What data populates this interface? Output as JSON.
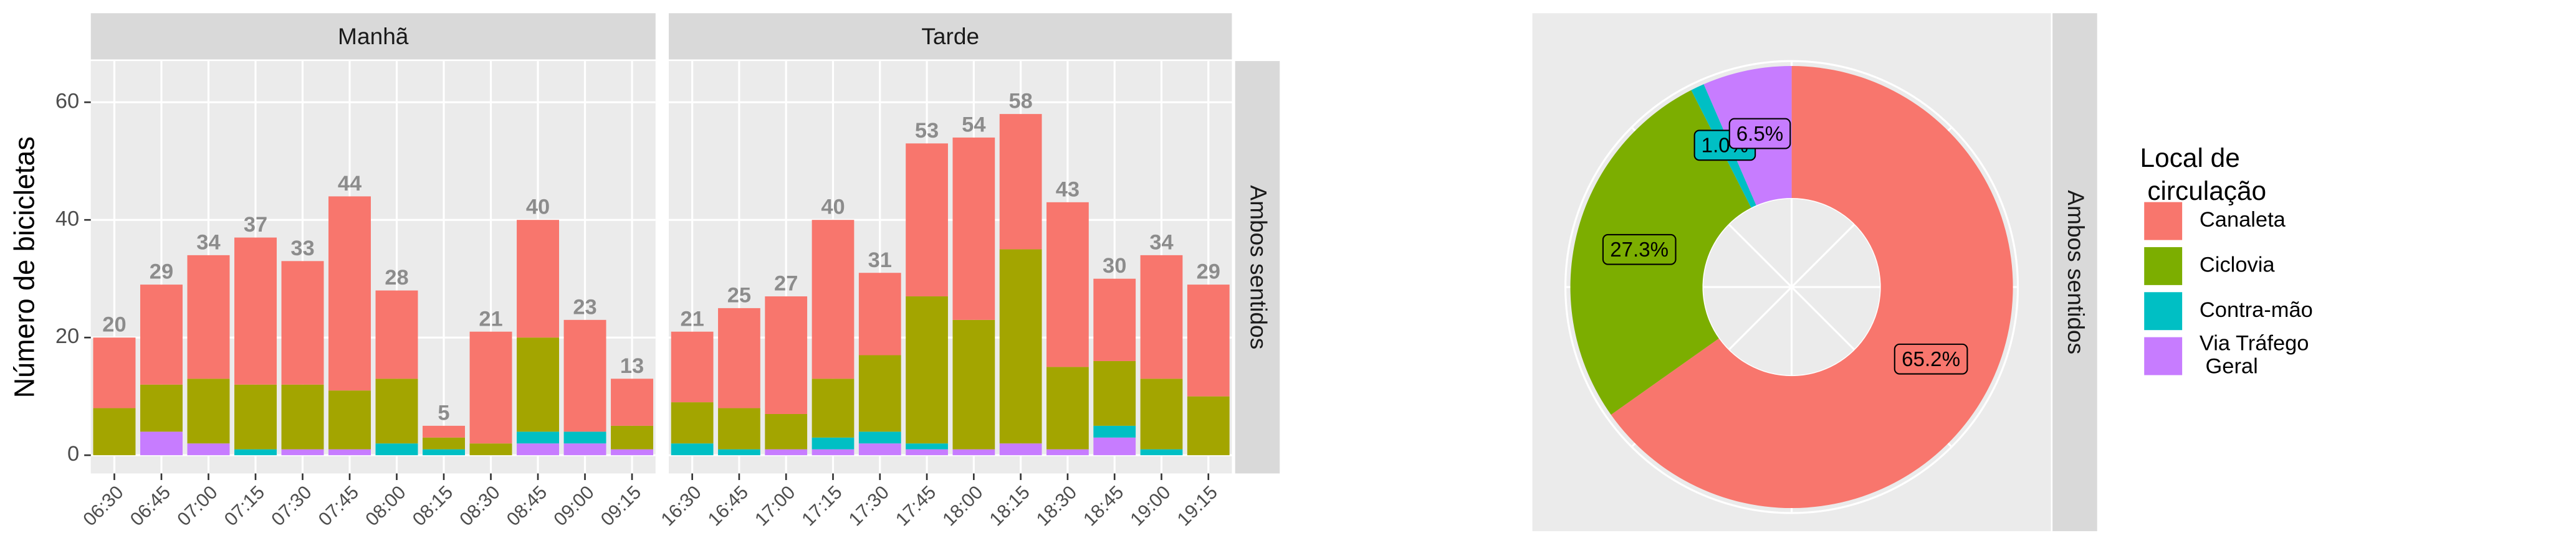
{
  "chart_data": [
    {
      "type": "bar",
      "stacked": true,
      "ylabel": "Número de bicicletas",
      "strip_right": "Ambos sentidos",
      "ylim": [
        -3.1,
        67
      ],
      "yticks": [
        0,
        20,
        40,
        60
      ],
      "grid": true,
      "facets": [
        {
          "title": "Manhã",
          "categories": [
            "06:30",
            "06:45",
            "07:00",
            "07:15",
            "07:30",
            "07:45",
            "08:00",
            "08:15",
            "08:30",
            "08:45",
            "09:00",
            "09:15"
          ],
          "totals": [
            20,
            29,
            34,
            37,
            33,
            44,
            28,
            5,
            21,
            40,
            23,
            13
          ],
          "series": [
            {
              "color": "#C77CFF",
              "values": [
                0,
                4,
                2,
                0,
                1,
                1,
                0,
                0,
                0,
                2,
                2,
                1
              ]
            },
            {
              "color": "#00BFC4",
              "values": [
                0,
                0,
                0,
                1,
                0,
                0,
                2,
                1,
                0,
                2,
                2,
                0
              ]
            },
            {
              "color": "#A3A500",
              "values": [
                8,
                8,
                11,
                11,
                11,
                10,
                11,
                2,
                2,
                16,
                0,
                4
              ]
            },
            {
              "color": "#F8766D",
              "values": [
                12,
                17,
                21,
                25,
                21,
                33,
                15,
                2,
                19,
                20,
                19,
                8
              ]
            }
          ]
        },
        {
          "title": "Tarde",
          "categories": [
            "16:30",
            "16:45",
            "17:00",
            "17:15",
            "17:30",
            "17:45",
            "18:00",
            "18:15",
            "18:30",
            "18:45",
            "19:00",
            "19:15"
          ],
          "totals": [
            21,
            25,
            27,
            40,
            31,
            53,
            54,
            58,
            43,
            30,
            34,
            29
          ],
          "series": [
            {
              "color": "#C77CFF",
              "values": [
                0,
                0,
                1,
                1,
                2,
                1,
                1,
                2,
                1,
                3,
                0,
                0
              ]
            },
            {
              "color": "#00BFC4",
              "values": [
                2,
                1,
                0,
                2,
                2,
                1,
                0,
                0,
                0,
                2,
                1,
                0
              ]
            },
            {
              "color": "#A3A500",
              "values": [
                7,
                7,
                6,
                10,
                13,
                25,
                22,
                33,
                14,
                11,
                12,
                10
              ]
            },
            {
              "color": "#F8766D",
              "values": [
                12,
                17,
                20,
                27,
                14,
                26,
                31,
                23,
                28,
                14,
                21,
                19
              ]
            }
          ]
        }
      ]
    },
    {
      "type": "pie",
      "strip_right": "Ambos sentidos",
      "legend_title": "Local de\n circulação",
      "categories": [
        "Canaleta",
        "Ciclovia",
        "Contra-mão",
        "Via Tráfego\n Geral"
      ],
      "values": [
        65.2,
        27.3,
        1.0,
        6.5
      ],
      "value_labels": [
        "65.2%",
        "27.3%",
        "1.0%",
        "6.5%"
      ],
      "colors": [
        "#F8766D",
        "#7CAE00",
        "#00BFC4",
        "#C77CFF"
      ]
    }
  ]
}
